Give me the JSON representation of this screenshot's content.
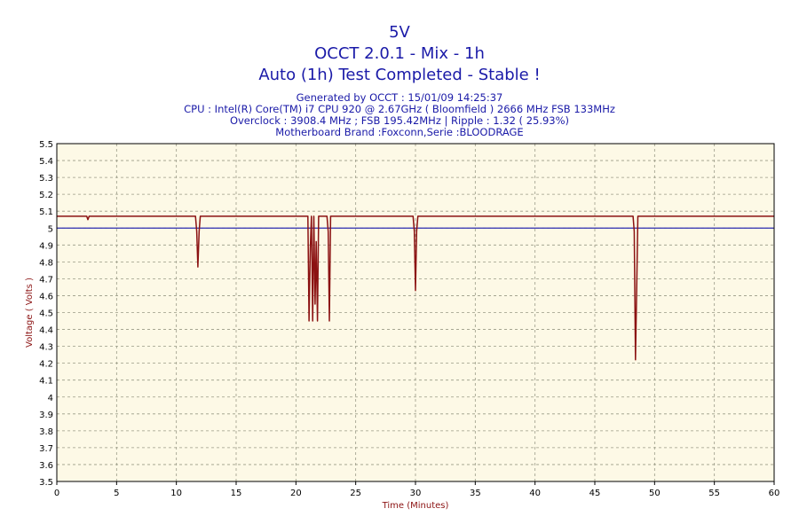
{
  "header": {
    "title": "5V",
    "subtitle1": "OCCT 2.0.1 - Mix - 1h",
    "subtitle2": "Auto (1h) Test Completed - Stable !",
    "info1": "Generated by OCCT : 15/01/09 14:25:37",
    "info2": "CPU : Intel(R) Core(TM) i7 CPU 920 @ 2.67GHz ( Bloomfield ) 2666 MHz FSB 133MHz",
    "info3": "Overclock : 3908.4 MHz ; FSB 195.42MHz | Ripple : 1.32 ( 25.93%)",
    "info4": "Motherboard Brand :Foxconn,Serie :BLOODRAGE"
  },
  "colors": {
    "plot_background": "#fdf9e6",
    "grid": "#9a9a86",
    "reference_line": "#2b2bb0",
    "voltage_line": "#8b1212",
    "title_text": "#1a1aa8",
    "axis_label_text": "#8b1212"
  },
  "chart_data": {
    "type": "line",
    "xlabel": "Time (Minutes)",
    "ylabel": "Voltage ( Volts )",
    "xlim": [
      0,
      60
    ],
    "ylim": [
      3.5,
      5.5
    ],
    "xticks": [
      0,
      5,
      10,
      15,
      20,
      25,
      30,
      35,
      40,
      45,
      50,
      55,
      60
    ],
    "yticks": [
      3.5,
      3.6,
      3.7,
      3.8,
      3.9,
      4,
      4.1,
      4.2,
      4.3,
      4.4,
      4.5,
      4.6,
      4.7,
      4.8,
      4.9,
      5,
      5.1,
      5.2,
      5.3,
      5.4,
      5.5
    ],
    "grid": true,
    "reference": {
      "value": 5.0
    },
    "series": [
      {
        "x": [
          0,
          2.5,
          2.6,
          2.7,
          11.6,
          11.7,
          11.8,
          11.9,
          12.0,
          21.0,
          21.1,
          21.2,
          21.3,
          21.4,
          21.5,
          21.6,
          21.7,
          21.8,
          21.9,
          22.0,
          22.6,
          22.7,
          22.8,
          22.9,
          23.0,
          29.8,
          29.9,
          30.0,
          30.1,
          30.2,
          48.2,
          48.3,
          48.4,
          48.5,
          48.6,
          48.7,
          60
        ],
        "y": [
          5.07,
          5.07,
          5.05,
          5.07,
          5.07,
          4.98,
          4.77,
          4.98,
          5.07,
          5.07,
          4.45,
          4.88,
          5.07,
          4.45,
          5.07,
          4.55,
          4.92,
          4.45,
          5.07,
          5.07,
          5.07,
          4.98,
          4.45,
          5.07,
          5.07,
          5.07,
          4.98,
          4.63,
          4.98,
          5.07,
          5.07,
          4.98,
          4.22,
          4.62,
          5.07,
          5.07,
          5.07
        ]
      }
    ]
  }
}
